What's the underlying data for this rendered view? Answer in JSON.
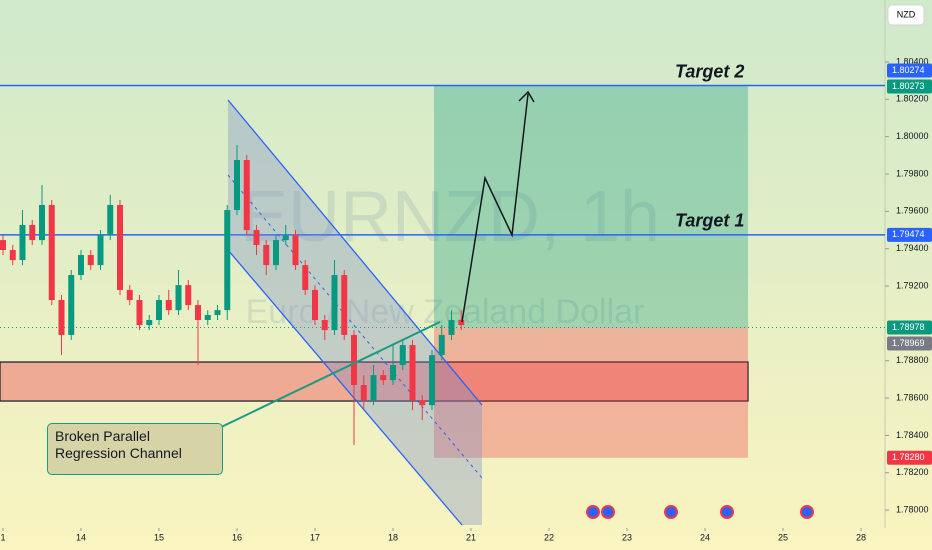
{
  "chart_data": {
    "type": "candlestick",
    "currency": "NZD",
    "watermark": "EURNZD, 1h",
    "watermark_subtitle": "Euro / New Zealand Dollar",
    "up_color": "#089981",
    "down_color": "#f23645",
    "ylim": [
      1.77904,
      1.80732
    ],
    "yticks": [
      {
        "value": 1.804,
        "label": "1.80400"
      },
      {
        "value": 1.802,
        "label": "1.80200"
      },
      {
        "value": 1.8,
        "label": "1.80000"
      },
      {
        "value": 1.798,
        "label": "1.79800"
      },
      {
        "value": 1.796,
        "label": "1.79600"
      },
      {
        "value": 1.794,
        "label": "1.79400"
      },
      {
        "value": 1.792,
        "label": "1.79200"
      },
      {
        "value": 1.788,
        "label": "1.78800"
      },
      {
        "value": 1.786,
        "label": "1.78600"
      },
      {
        "value": 1.784,
        "label": "1.78400"
      },
      {
        "value": 1.782,
        "label": "1.78200"
      },
      {
        "value": 1.78,
        "label": "1.78000"
      }
    ],
    "xlim": [
      -0.0385,
      11.3077
    ],
    "xticks": [
      {
        "value": 0,
        "label": "1"
      },
      {
        "value": 1,
        "label": "14"
      },
      {
        "value": 2,
        "label": "15"
      },
      {
        "value": 3,
        "label": "16"
      },
      {
        "value": 4,
        "label": "17"
      },
      {
        "value": 5,
        "label": "18"
      },
      {
        "value": 6,
        "label": "21"
      },
      {
        "value": 7,
        "label": "22"
      },
      {
        "value": 8,
        "label": "23"
      },
      {
        "value": 9,
        "label": "24"
      },
      {
        "value": 10,
        "label": "25"
      },
      {
        "value": 11,
        "label": "28"
      }
    ],
    "candles": {
      "x": [
        0,
        0.125,
        0.25,
        0.375,
        0.5,
        0.625,
        0.75,
        0.875,
        1,
        1.125,
        1.25,
        1.375,
        1.5,
        1.625,
        1.75,
        1.875,
        2,
        2.125,
        2.25,
        2.375,
        2.5,
        2.625,
        2.75,
        2.875,
        3,
        3.125,
        3.25,
        3.375,
        3.5,
        3.625,
        3.75,
        3.875,
        4,
        4.125,
        4.25,
        4.375,
        4.5,
        4.625,
        4.75,
        4.875,
        5,
        5.125,
        5.25,
        5.375,
        5.5,
        5.625,
        5.75,
        5.875
      ],
      "open": [
        1.79446,
        1.79393,
        1.79339,
        1.79527,
        1.79446,
        1.79634,
        1.79125,
        1.78938,
        1.79259,
        1.79366,
        1.79312,
        1.79473,
        1.79634,
        1.79179,
        1.79125,
        1.78991,
        1.79018,
        1.79125,
        1.79071,
        1.79205,
        1.79098,
        1.79018,
        1.79045,
        1.79071,
        1.79607,
        1.79875,
        1.795,
        1.7942,
        1.79312,
        1.79446,
        1.79473,
        1.79312,
        1.79179,
        1.79018,
        1.78964,
        1.79259,
        1.78938,
        1.7867,
        1.78589,
        1.78723,
        1.78696,
        1.78777,
        1.78884,
        1.78589,
        1.78562,
        1.7883,
        1.78938,
        1.79018
      ],
      "high": [
        1.79473,
        1.7942,
        1.79607,
        1.79554,
        1.79741,
        1.79661,
        1.79152,
        1.79286,
        1.79393,
        1.79393,
        1.795,
        1.79688,
        1.79661,
        1.79205,
        1.79152,
        1.79045,
        1.79152,
        1.79179,
        1.79286,
        1.79232,
        1.79125,
        1.79071,
        1.79098,
        1.79634,
        1.79955,
        1.79902,
        1.79527,
        1.79446,
        1.79473,
        1.79527,
        1.795,
        1.79339,
        1.79205,
        1.79045,
        1.79339,
        1.79286,
        1.78964,
        1.78723,
        1.78777,
        1.7875,
        1.78884,
        1.78911,
        1.78911,
        1.78616,
        1.78857,
        1.78991,
        1.79071,
        1.79071
      ],
      "low": [
        1.79366,
        1.79312,
        1.79312,
        1.7942,
        1.7942,
        1.79098,
        1.7883,
        1.78911,
        1.79232,
        1.79286,
        1.79286,
        1.79446,
        1.79152,
        1.79098,
        1.78964,
        1.78964,
        1.78991,
        1.79045,
        1.79045,
        1.79071,
        1.78777,
        1.78991,
        1.79018,
        1.79018,
        1.7958,
        1.79473,
        1.79366,
        1.79259,
        1.79286,
        1.7942,
        1.79286,
        1.79152,
        1.78991,
        1.78911,
        1.78938,
        1.78911,
        1.78348,
        1.78536,
        1.78562,
        1.7867,
        1.7867,
        1.7875,
        1.78536,
        1.78482,
        1.78536,
        1.78803,
        1.78911,
        1.78964
      ],
      "close": [
        1.79393,
        1.79339,
        1.79527,
        1.79446,
        1.79634,
        1.79125,
        1.78938,
        1.79259,
        1.79366,
        1.79312,
        1.79473,
        1.79634,
        1.79179,
        1.79125,
        1.78991,
        1.79018,
        1.79125,
        1.79071,
        1.79205,
        1.79098,
        1.79018,
        1.79045,
        1.79071,
        1.79607,
        1.79875,
        1.795,
        1.7942,
        1.79312,
        1.79446,
        1.79473,
        1.79312,
        1.79179,
        1.79018,
        1.78964,
        1.79259,
        1.78938,
        1.7867,
        1.78589,
        1.78723,
        1.78696,
        1.78777,
        1.78884,
        1.78589,
        1.78562,
        1.7883,
        1.78938,
        1.79018,
        1.78991
      ]
    },
    "levels": [
      {
        "label": "Target 2",
        "value": 1.80274,
        "color": "#2962ff"
      },
      {
        "label": "Target 1",
        "value": 1.79474,
        "color": "#2962ff"
      }
    ],
    "zone": [
      1.78793,
      1.78584
    ],
    "position": {
      "target": 1.80274,
      "entry": 1.78978,
      "stop": 1.7828
    },
    "price_labels": [
      {
        "value": 1.80274,
        "label": "1.80274",
        "color": "#2962ff"
      },
      {
        "value": 1.80273,
        "label": "1.80273",
        "color": "#089981"
      },
      {
        "value": 1.79474,
        "label": "1.79474",
        "color": "#2962ff"
      },
      {
        "value": 1.78978,
        "label": "1.78978",
        "color": "#089981"
      },
      {
        "value": 1.78969,
        "label": "1.78969",
        "color": "#787b86"
      },
      {
        "value": 1.7828,
        "label": "1.78280",
        "color": "#f23645"
      }
    ],
    "callout": "Broken Parallel Regression Channel"
  }
}
